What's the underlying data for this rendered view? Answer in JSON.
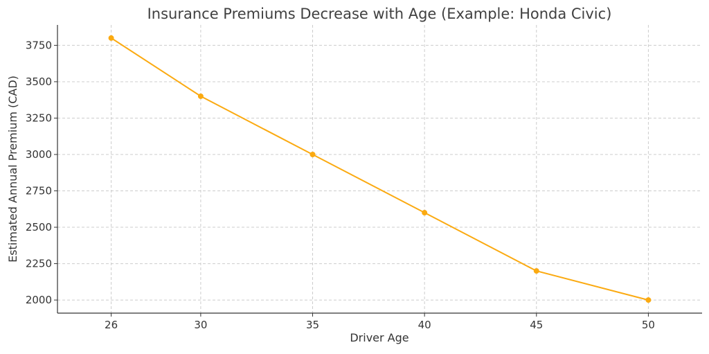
{
  "chart_data": {
    "type": "line",
    "title": "Insurance Premiums Decrease with Age (Example: Honda Civic)",
    "xlabel": "Driver Age",
    "ylabel": "Estimated Annual Premium (CAD)",
    "x": [
      26,
      30,
      35,
      40,
      45,
      50
    ],
    "xticks": [
      26,
      30,
      35,
      40,
      45,
      50
    ],
    "xlim": [
      23.6,
      52.4
    ],
    "ylim": [
      1910,
      3890
    ],
    "yticks": [
      2000,
      2250,
      2500,
      2750,
      3000,
      3250,
      3500,
      3750
    ],
    "grid": true,
    "series": [
      {
        "values": [
          3800,
          3400,
          3000,
          2600,
          2200,
          2000
        ],
        "color": "#FBAA11",
        "marker": "circle"
      }
    ]
  }
}
